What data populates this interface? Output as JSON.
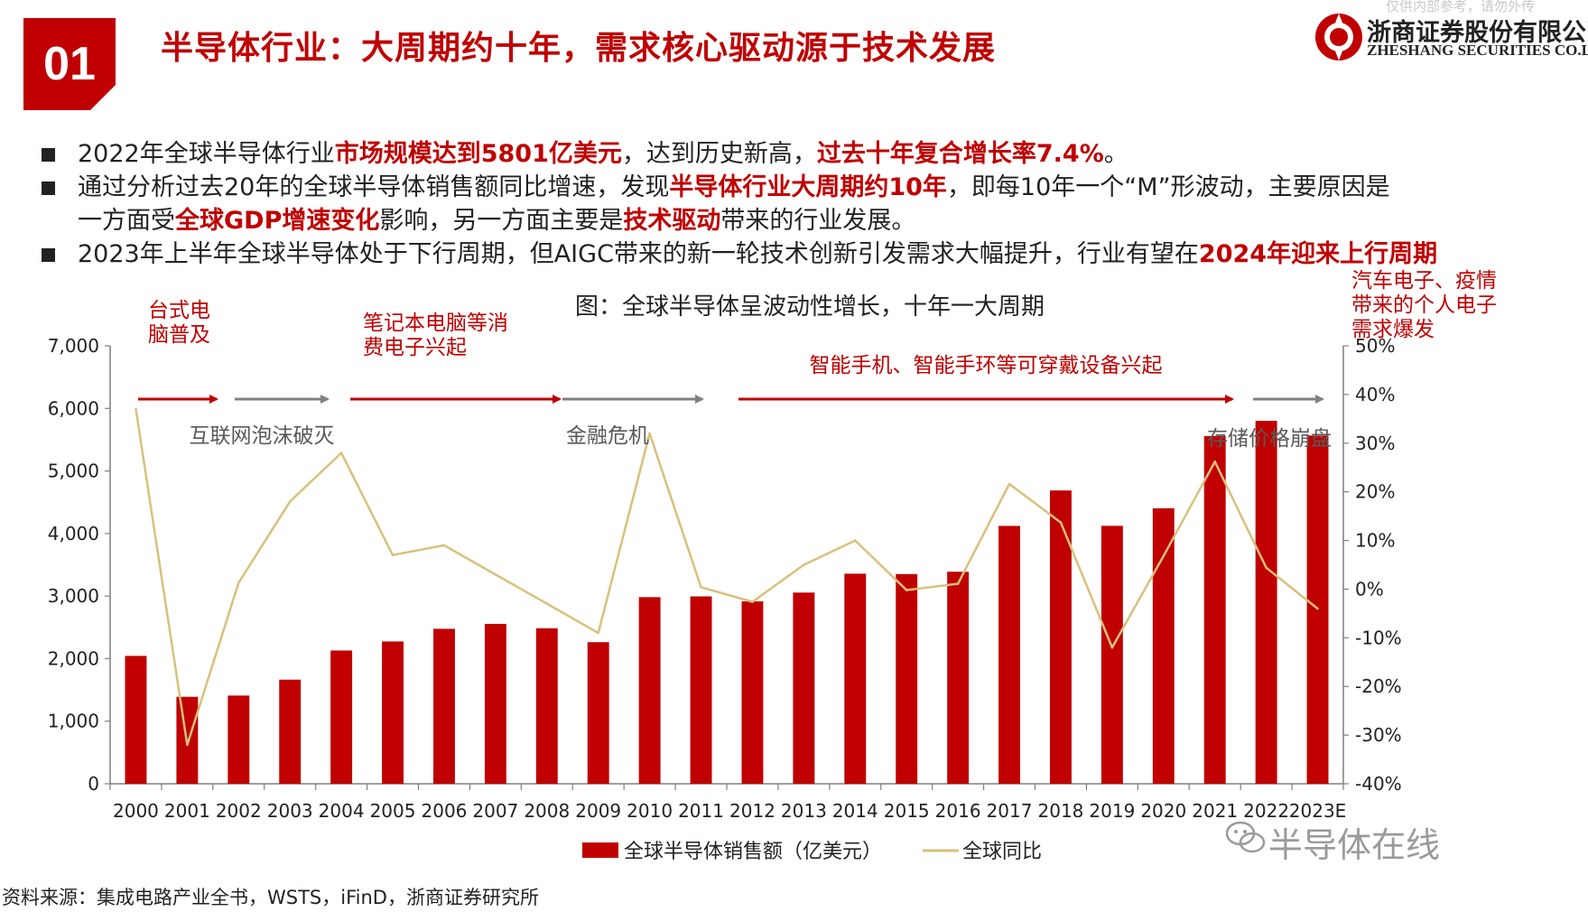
{
  "header": {
    "badge": "01",
    "title": "半导体行业：大周期约十年，需求核心驱动源于技术发展",
    "watermark": "仅供内部参考，请勿外传",
    "company_cn": "浙商证券股份有限公司",
    "company_en": "ZHESHANG SECURITIES CO.LTD"
  },
  "bullets": [
    {
      "segments": [
        {
          "text": "2022年全球半导体行业",
          "hl": false
        },
        {
          "text": "市场规模达到5801亿美元",
          "hl": true
        },
        {
          "text": "，达到历史新高，",
          "hl": false
        },
        {
          "text": "过去十年复合增长率7.4%",
          "hl": true
        },
        {
          "text": "。",
          "hl": false
        }
      ]
    },
    {
      "segments": [
        {
          "text": "通过分析过去20年的全球半导体销售额同比增速，发现",
          "hl": false
        },
        {
          "text": "半导体行业大周期约10年",
          "hl": true
        },
        {
          "text": "，即每10年一个“M”形波动，主要原因是",
          "hl": false
        }
      ],
      "continuation": [
        {
          "text": "一方面受",
          "hl": false
        },
        {
          "text": "全球GDP增速变化",
          "hl": true
        },
        {
          "text": "影响，另一方面主要是",
          "hl": false
        },
        {
          "text": "技术驱动",
          "hl": true
        },
        {
          "text": "带来的行业发展。",
          "hl": false
        }
      ]
    },
    {
      "segments": [
        {
          "text": "2023年上半年全球半导体处于下行周期，但AIGC带来的新一轮技术创新引发需求大幅提升，行业有望在",
          "hl": false
        },
        {
          "text": "2024年迎来上行周期",
          "hl": true
        }
      ]
    }
  ],
  "chart_data": {
    "type": "bar",
    "title": "图：全球半导体呈波动性增长，十年一大周期",
    "categories": [
      "2000",
      "2001",
      "2002",
      "2003",
      "2004",
      "2005",
      "2006",
      "2007",
      "2008",
      "2009",
      "2010",
      "2011",
      "2012",
      "2013",
      "2014",
      "2015",
      "2016",
      "2017",
      "2018",
      "2019",
      "2020",
      "2021",
      "2022",
      "2023E"
    ],
    "series": [
      {
        "name": "全球半导体销售额（亿美元）",
        "kind": "bar",
        "axis": "left",
        "color": "#c00000",
        "values": [
          2044,
          1390,
          1410,
          1664,
          2130,
          2275,
          2477,
          2556,
          2486,
          2263,
          2983,
          2995,
          2916,
          3056,
          3358,
          3352,
          3389,
          4122,
          4688,
          4123,
          4404,
          5559,
          5801,
          5566
        ]
      },
      {
        "name": "全球同比",
        "kind": "line",
        "axis": "right",
        "color": "#d9c07b",
        "values": [
          37,
          -32,
          1.3,
          18,
          28,
          7,
          9,
          3,
          -3,
          -9,
          32,
          0.4,
          -2.6,
          5,
          10,
          -0.2,
          1.1,
          21.6,
          13.7,
          -12,
          6.8,
          26.2,
          4.4,
          -4
        ]
      }
    ],
    "y_left": {
      "min": 0,
      "max": 7000,
      "ticks": [
        "0",
        "1,000",
        "2,000",
        "3,000",
        "4,000",
        "5,000",
        "6,000",
        "7,000"
      ]
    },
    "y_right": {
      "min": -40,
      "max": 50,
      "ticks": [
        "-40%",
        "-30%",
        "-20%",
        "-10%",
        "0%",
        "10%",
        "20%",
        "30%",
        "40%",
        "50%"
      ]
    },
    "legend_position": "bottom",
    "annotations": {
      "red_arrows": [
        {
          "label": "台式电\n脑普及",
          "from": 0,
          "to": 1
        },
        {
          "label": "笔记本电脑等消\n费电子兴起",
          "from": 3,
          "to": 7
        },
        {
          "label": "智能手机、智能手环等可穿戴设备兴起",
          "from": 10,
          "to": 19
        },
        {
          "label": "汽车电子、疫情\n带来的个人电子\n需求爆发",
          "from": 21,
          "to": 23
        }
      ],
      "gray_arrows": [
        {
          "label": "互联网泡沫破灭",
          "from": 1,
          "to": 3
        },
        {
          "label": "金融危机",
          "from": 7,
          "to": 10
        },
        {
          "label": "存储价格崩盘",
          "from": 19,
          "to": 21
        }
      ]
    }
  },
  "source": "资料来源：集成电路产业全书，WSTS，iFinD，浙商证券研究所",
  "wechat": "半导体在线"
}
